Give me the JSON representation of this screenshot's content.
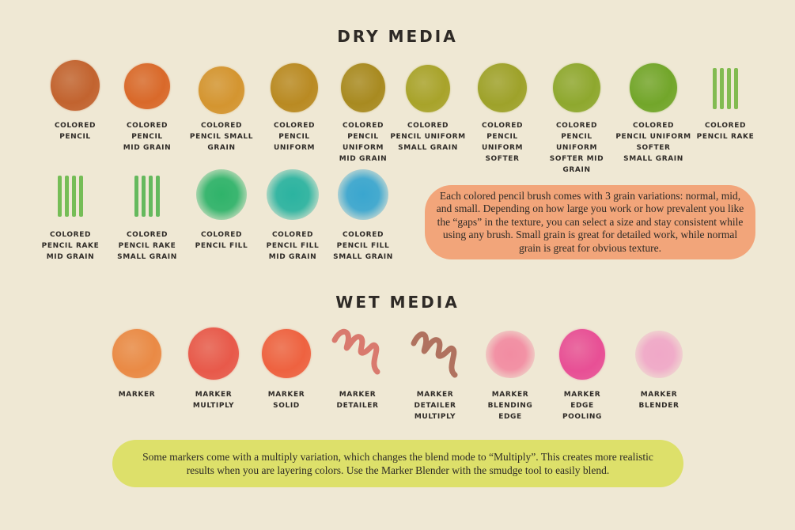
{
  "dry_media": {
    "title": "DRY MEDIA",
    "items": [
      {
        "label": "COLORED\nPENCIL",
        "color": "#c2632f"
      },
      {
        "label": "COLORED\nPENCIL\nMID GRAIN",
        "color": "#d9692a"
      },
      {
        "label": "COLORED\nPENCIL SMALL\nGRAIN",
        "color": "#d49530"
      },
      {
        "label": "COLORED\nPENCIL\nUNIFORM",
        "color": "#b98a22"
      },
      {
        "label": "COLORED\nPENCIL\nUNIFORM\nMID GRAIN",
        "color": "#a88a20"
      },
      {
        "label": "COLORED\nPENCIL UNIFORM\nSMALL GRAIN",
        "color": "#a8a32a"
      },
      {
        "label": "COLORED\nPENCIL\nUNIFORM\nSOFTER",
        "color": "#9ea22a"
      },
      {
        "label": "COLORED\nPENCIL\nUNIFORM\nSOFTER MID\nGRAIN",
        "color": "#8ea82e"
      },
      {
        "label": "COLORED\nPENCIL UNIFORM\nSOFTER\nSMALL GRAIN",
        "color": "#72a62a"
      },
      {
        "label": "COLORED\nPENCIL RAKE",
        "color": "#6fb33a"
      },
      {
        "label": "COLORED\nPENCIL RAKE\nMID GRAIN",
        "color": "#5fb540"
      },
      {
        "label": "COLORED\nPENCIL RAKE\nSMALL GRAIN",
        "color": "#4cb048"
      },
      {
        "label": "COLORED\nPENCIL FILL",
        "color": "#2fb36a"
      },
      {
        "label": "COLORED\nPENCIL FILL\nMID GRAIN",
        "color": "#2bb3a0"
      },
      {
        "label": "COLORED\nPENCIL FILL\nSMALL GRAIN",
        "color": "#3aa6cf"
      }
    ],
    "note": "Each colored pencil brush comes with 3 grain variations: normal, mid, and small. Depending on how large you work or how prevalent you like the “gaps” in the texture, you can select a size and stay consistent while using any brush. Small grain is great for detailed work, while normal grain is great for obvious texture."
  },
  "wet_media": {
    "title": "WET MEDIA",
    "items": [
      {
        "label": "MARKER",
        "color": "#ea8a45"
      },
      {
        "label": "MARKER\nMULTIPLY",
        "color": "#e8594a"
      },
      {
        "label": "MARKER\nSOLID",
        "color": "#ee6240"
      },
      {
        "label": "MARKER\nDETAILER",
        "color": "#d97a6e"
      },
      {
        "label": "MARKER\nDETAILER\nMULTIPLY",
        "color": "#b0725f"
      },
      {
        "label": "MARKER\nBLENDING\nEDGE",
        "color": "#f28ca2"
      },
      {
        "label": "MARKER\nEDGE\nPOOLING",
        "color": "#e84f95"
      },
      {
        "label": "MARKER\nBLENDER",
        "color": "#f0a8c8"
      }
    ],
    "note": "Some markers come with a multiply variation, which changes the blend mode to “Multiply”. This creates more realistic results when you are layering colors. Use the Marker Blender  with the smudge tool to easily blend."
  }
}
